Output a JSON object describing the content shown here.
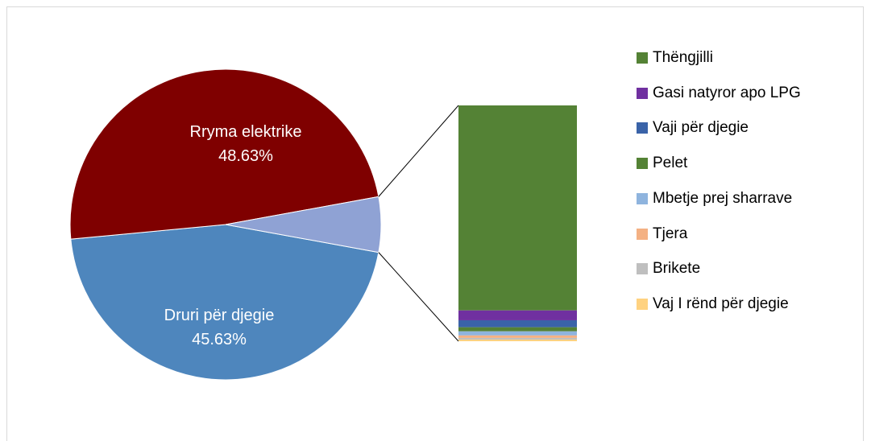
{
  "chart_data": {
    "type": "pie",
    "subtype": "bar-of-pie",
    "slices": [
      {
        "label": "Rryma elektrike",
        "value": 48.63,
        "value_label": "48.63%",
        "color": "#7f0000"
      },
      {
        "label": "Druri për djegie",
        "value": 45.63,
        "value_label": "45.63%",
        "color": "#4e86bd"
      },
      {
        "label": "",
        "value": 5.74,
        "value_label": "",
        "color": "#8fa2d4"
      }
    ],
    "bar_breakdown": [
      {
        "label": "Thëngjilli",
        "value": 4.99,
        "color": "#548235"
      },
      {
        "label": "Gasi natyror apo LPG",
        "value": 0.24,
        "color": "#7030a0"
      },
      {
        "label": "Vaji për djegie",
        "value": 0.17,
        "color": "#3a63a8"
      },
      {
        "label": "Pelet",
        "value": 0.1,
        "color": "#548235"
      },
      {
        "label": "Mbetje prej sharrave",
        "value": 0.1,
        "color": "#8fb4de"
      },
      {
        "label": "Tjera",
        "value": 0.06,
        "color": "#f4b183"
      },
      {
        "label": "Brikete",
        "value": 0.04,
        "color": "#bfbfbf"
      },
      {
        "label": "Vaj I rënd për djegie",
        "value": 0.04,
        "color": "#ffd280"
      }
    ],
    "legend": {
      "position": "right",
      "items": [
        {
          "label": "Thëngjilli",
          "color": "#548235"
        },
        {
          "label": "Gasi natyror apo LPG",
          "color": "#7030a0"
        },
        {
          "label": "Vaji për djegie",
          "color": "#3a63a8"
        },
        {
          "label": "Pelet",
          "color": "#548235"
        },
        {
          "label": "Mbetje prej sharrave",
          "color": "#8fb4de"
        },
        {
          "label": "Tjera",
          "color": "#f4b183"
        },
        {
          "label": "Brikete",
          "color": "#bfbfbf"
        },
        {
          "label": "Vaj I rënd për djegie",
          "color": "#ffd280"
        }
      ]
    }
  }
}
